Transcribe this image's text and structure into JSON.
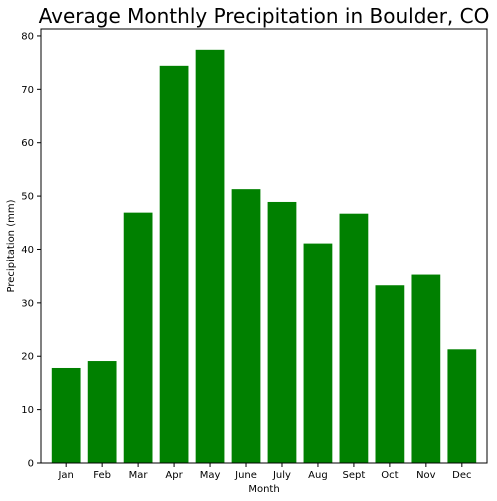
{
  "chart_data": {
    "type": "bar",
    "title": "Average Monthly Precipitation in Boulder, CO",
    "xlabel": "Month",
    "ylabel": "Precipitation (mm)",
    "categories": [
      "Jan",
      "Feb",
      "Mar",
      "Apr",
      "May",
      "June",
      "July",
      "Aug",
      "Sept",
      "Oct",
      "Nov",
      "Dec"
    ],
    "values": [
      17.8,
      19.1,
      46.9,
      74.4,
      77.4,
      51.3,
      48.9,
      41.1,
      46.7,
      33.3,
      35.3,
      21.3
    ],
    "ylim": [
      0,
      81.3
    ],
    "yticks": [
      0,
      10,
      20,
      30,
      40,
      50,
      60,
      70,
      80
    ],
    "bar_color": "#008000",
    "grid": false,
    "legend": "none"
  }
}
